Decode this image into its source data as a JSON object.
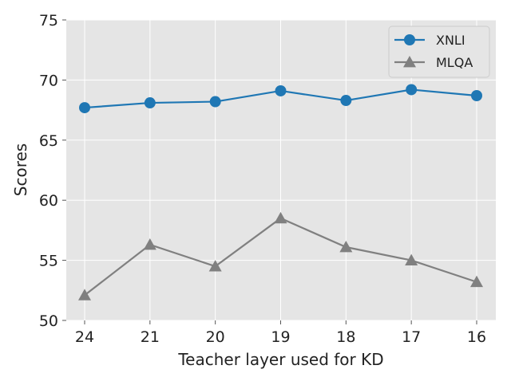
{
  "chart_data": {
    "type": "line",
    "title": "",
    "xlabel": "Teacher layer used for KD",
    "ylabel": "Scores",
    "categories": [
      "24",
      "21",
      "20",
      "19",
      "18",
      "17",
      "16"
    ],
    "ylim": [
      50,
      75
    ],
    "yticks": [
      "50",
      "55",
      "60",
      "65",
      "70",
      "75"
    ],
    "grid": true,
    "legend_position": "top-right",
    "series": [
      {
        "name": "XNLI",
        "color": "#1f77b4",
        "marker": "circle",
        "values": [
          67.7,
          68.1,
          68.2,
          69.1,
          68.3,
          69.2,
          68.7
        ]
      },
      {
        "name": "MLQA",
        "color": "#808080",
        "marker": "triangle",
        "values": [
          52.1,
          56.3,
          54.5,
          58.5,
          56.1,
          55.0,
          53.2
        ]
      }
    ]
  }
}
